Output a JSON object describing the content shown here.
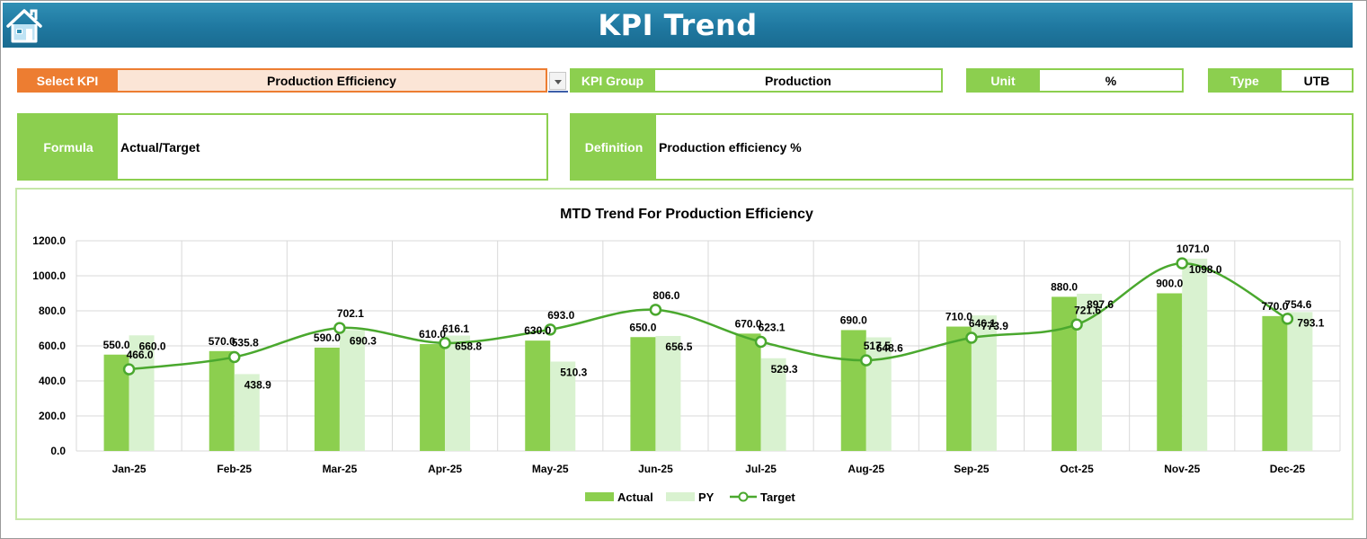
{
  "header": {
    "title": "KPI Trend",
    "home_icon": "home-icon",
    "bar_color": "#1f78a0"
  },
  "selector": {
    "label": "Select KPI",
    "value": "Production Efficiency",
    "accent": "#ed7d31"
  },
  "kpi_group": {
    "label": "KPI Group",
    "value": "Production"
  },
  "unit": {
    "label": "Unit",
    "value": "%"
  },
  "type": {
    "label": "Type",
    "value": "UTB"
  },
  "formula": {
    "label": "Formula",
    "value": "Actual/Target"
  },
  "definition": {
    "label": "Definition",
    "value": "Production efficiency %"
  },
  "colors": {
    "green": "#8ccf4f",
    "light_green": "#d9f2d0",
    "target_line": "#4aa82e"
  },
  "chart_data": {
    "type": "bar",
    "title": "MTD Trend For Production Efficiency",
    "categories": [
      "Jan-25",
      "Feb-25",
      "Mar-25",
      "Apr-25",
      "May-25",
      "Jun-25",
      "Jul-25",
      "Aug-25",
      "Sep-25",
      "Oct-25",
      "Nov-25",
      "Dec-25"
    ],
    "ylim": [
      0,
      1200
    ],
    "yticks": [
      "1200.0",
      "1000.0",
      "800.0",
      "600.0",
      "400.0",
      "200.0",
      "0.0"
    ],
    "grid": true,
    "legend_position": "bottom",
    "series": [
      {
        "name": "Actual",
        "kind": "bar",
        "color": "#8ccf4f",
        "values": [
          550.0,
          570.0,
          590.0,
          610.0,
          630.0,
          650.0,
          670.0,
          690.0,
          710.0,
          880.0,
          900.0,
          770.0
        ],
        "labels": [
          "550.0",
          "570.0",
          "590.0",
          "610.0",
          "630.0",
          "650.0",
          "670.0",
          "690.0",
          "710.0",
          "880.0",
          "900.0",
          "770.0"
        ]
      },
      {
        "name": "PY",
        "kind": "bar",
        "color": "#d9f2d0",
        "values": [
          660.0,
          438.9,
          690.3,
          658.8,
          510.3,
          656.5,
          529.3,
          648.6,
          773.9,
          897.6,
          1098.0,
          793.1
        ],
        "labels": [
          "660.0",
          "438.9",
          "690.3",
          "658.8",
          "510.3",
          "656.5",
          "529.3",
          "648.6",
          "773.9",
          "897.6",
          "1098.0",
          "793.1"
        ]
      },
      {
        "name": "Target",
        "kind": "line",
        "color": "#4aa82e",
        "values": [
          466.0,
          535.8,
          702.1,
          616.1,
          693.0,
          806.0,
          623.1,
          517.5,
          646.1,
          721.6,
          1071.0,
          754.6
        ],
        "labels": [
          "466.0",
          "535.8",
          "702.1",
          "616.1",
          "693.0",
          "806.0",
          "623.1",
          "517.5",
          "646.1",
          "721.6",
          "1071.0",
          "754.6"
        ]
      }
    ]
  }
}
